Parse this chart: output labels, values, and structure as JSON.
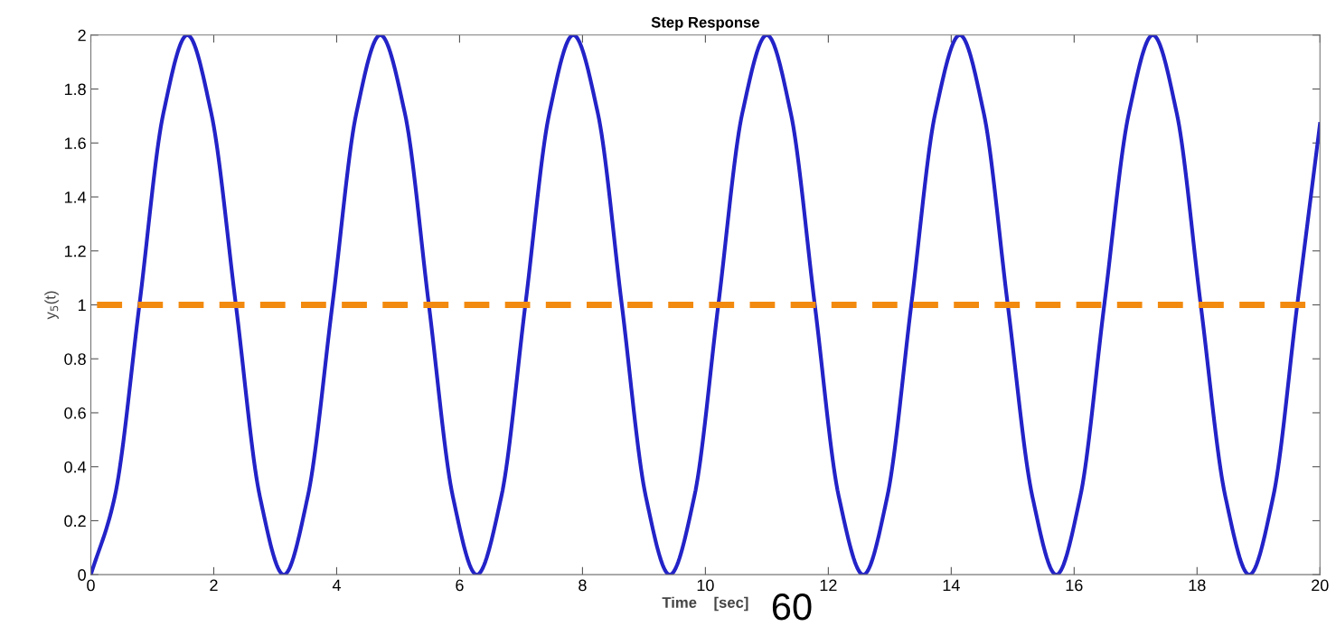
{
  "chart_data": {
    "type": "line",
    "title": "Step Response",
    "xlabel": "Time    [sec]",
    "ylabel": "y$_{5}$(t)",
    "annotations": [
      "60"
    ],
    "series": [
      {
        "color": "#2323c8",
        "x": [
          0,
          0.39,
          0.79,
          1.18,
          1.57,
          1.96,
          2.36,
          2.75,
          3.14,
          3.53,
          3.93,
          4.32,
          4.71,
          5.11,
          5.5,
          5.89,
          6.28,
          6.68,
          7.07,
          7.46,
          7.85,
          8.25,
          8.64,
          9.03,
          9.42,
          9.82,
          10.21,
          10.6,
          11.0,
          11.39,
          11.78,
          12.17,
          12.57,
          12.96,
          13.35,
          13.74,
          14.14,
          14.53,
          14.92,
          15.32,
          15.71,
          16.1,
          16.49,
          16.89,
          17.28,
          17.67,
          18.06,
          18.46,
          18.85,
          19.24,
          19.63,
          20
        ],
        "values": [
          0,
          0.29,
          1,
          1.71,
          2,
          1.71,
          1,
          0.29,
          0,
          0.29,
          1,
          1.71,
          2,
          1.71,
          1,
          0.29,
          0,
          0.29,
          1,
          1.71,
          2,
          1.71,
          1,
          0.29,
          0,
          0.29,
          1,
          1.71,
          2,
          1.71,
          1,
          0.29,
          0,
          0.29,
          1,
          1.71,
          2,
          1.71,
          1,
          0.29,
          0,
          0.29,
          1,
          1.71,
          2,
          1.71,
          1,
          0.29,
          0,
          0.29,
          1,
          1.67
        ]
      }
    ],
    "ref_lines": [
      {
        "axis": "y",
        "value": 1,
        "color": "#f28a0f",
        "line_style": "dashed"
      }
    ],
    "xlim": [
      0,
      20
    ],
    "xticks": [
      0,
      2,
      4,
      6,
      8,
      10,
      12,
      14,
      16,
      18,
      20
    ],
    "ylim": [
      0,
      2
    ],
    "yticks": [
      0,
      0.2,
      0.4,
      0.6,
      0.8,
      1,
      1.2,
      1.4,
      1.6,
      1.8,
      2
    ],
    "grid": false,
    "legend": false,
    "marker": "none",
    "line_style": "solid"
  }
}
